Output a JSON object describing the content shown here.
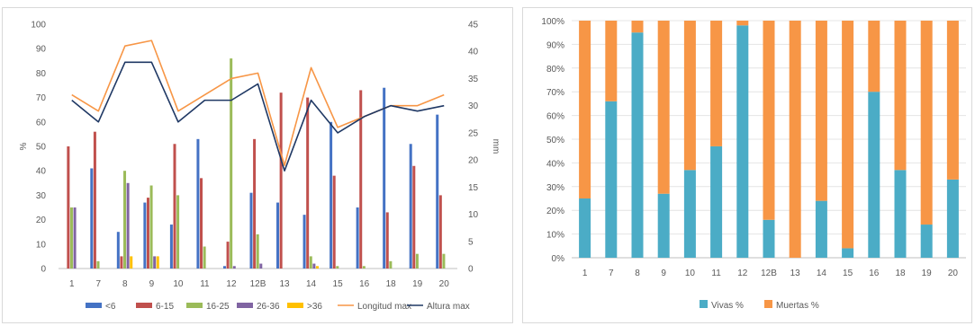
{
  "chart_data": [
    {
      "type": "bar",
      "categories": [
        "1",
        "7",
        "8",
        "9",
        "10",
        "11",
        "12",
        "12B",
        "13",
        "14",
        "15",
        "16",
        "18",
        "19",
        "20"
      ],
      "ylabel": "%",
      "y2label": "mm",
      "ylim": [
        0,
        100
      ],
      "y2lim": [
        0,
        45
      ],
      "yticks": [
        "0",
        "10",
        "20",
        "30",
        "40",
        "50",
        "60",
        "70",
        "80",
        "90",
        "100"
      ],
      "y2ticks": [
        "0",
        "5",
        "10",
        "15",
        "20",
        "25",
        "30",
        "35",
        "40",
        "45"
      ],
      "grid": false,
      "legend_position": "bottom",
      "series": [
        {
          "name": "<6",
          "type": "bar",
          "color": "#4472c4",
          "values": [
            0,
            41,
            15,
            27,
            18,
            53,
            1,
            31,
            27,
            22,
            60,
            25,
            74,
            51,
            63
          ]
        },
        {
          "name": "6-15",
          "type": "bar",
          "color": "#c0504d",
          "values": [
            50,
            56,
            5,
            29,
            51,
            37,
            11,
            53,
            72,
            70,
            38,
            73,
            23,
            42,
            30
          ]
        },
        {
          "name": "16-25",
          "type": "bar",
          "color": "#9bbb59",
          "values": [
            25,
            3,
            40,
            34,
            30,
            9,
            86,
            14,
            0,
            5,
            1,
            1,
            3,
            6,
            6
          ]
        },
        {
          "name": "26-36",
          "type": "bar",
          "color": "#8064a2",
          "values": [
            25,
            0,
            35,
            5,
            0,
            0,
            1,
            2,
            0,
            2,
            0,
            0,
            0,
            0,
            0
          ]
        },
        {
          "name": ">36",
          "type": "bar",
          "color": "#ffc000",
          "values": [
            0,
            0,
            5,
            5,
            0,
            0,
            0,
            0,
            0,
            1,
            0,
            0,
            0,
            0,
            0
          ]
        },
        {
          "name": "Longitud max",
          "type": "line",
          "axis": "right",
          "color": "#f79646",
          "values": [
            32,
            29,
            41,
            42,
            29,
            32,
            35,
            36,
            19,
            37,
            26,
            28,
            30,
            30,
            32
          ]
        },
        {
          "name": "Altura max",
          "type": "line",
          "axis": "right",
          "color": "#1f3864",
          "values": [
            31,
            27,
            38,
            38,
            27,
            31,
            31,
            34,
            18,
            31,
            25,
            28,
            30,
            29,
            30
          ]
        }
      ]
    },
    {
      "type": "bar",
      "stacked": true,
      "categories": [
        "1",
        "7",
        "8",
        "9",
        "10",
        "11",
        "12",
        "12B",
        "13",
        "14",
        "15",
        "16",
        "18",
        "19",
        "20"
      ],
      "ylim": [
        0,
        100
      ],
      "yticks": [
        "0%",
        "10%",
        "20%",
        "30%",
        "40%",
        "50%",
        "60%",
        "70%",
        "80%",
        "90%",
        "100%"
      ],
      "grid": true,
      "legend_position": "bottom",
      "series": [
        {
          "name": "Vivas %",
          "color": "#4bacc6",
          "values": [
            25,
            66,
            95,
            27,
            37,
            47,
            98,
            16,
            0,
            24,
            4,
            70,
            37,
            14,
            33
          ]
        },
        {
          "name": "Muertas %",
          "color": "#f79646",
          "values": [
            75,
            34,
            5,
            73,
            63,
            53,
            2,
            84,
            100,
            76,
            96,
            30,
            63,
            86,
            67
          ]
        }
      ]
    }
  ]
}
